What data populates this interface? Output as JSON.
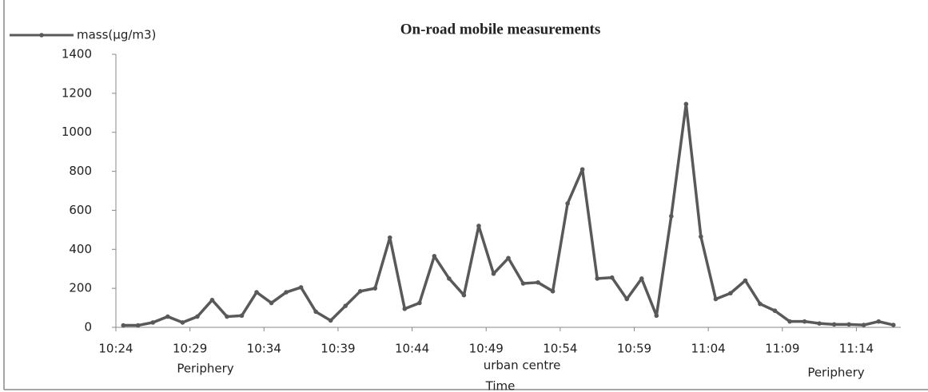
{
  "chart_data": {
    "type": "line",
    "title": "On-road mobile measurements",
    "x_label": "Time",
    "annotations": [
      "Periphery",
      "urban centre",
      "Periphery"
    ],
    "categories": [
      "10:24",
      null,
      null,
      null,
      null,
      "10:29",
      null,
      null,
      null,
      null,
      "10:34",
      null,
      null,
      null,
      null,
      "10:39",
      null,
      null,
      null,
      null,
      "10:44",
      null,
      null,
      null,
      null,
      "10:49",
      null,
      null,
      null,
      null,
      "10:54",
      null,
      null,
      null,
      null,
      "10:59",
      null,
      null,
      null,
      null,
      "11:04",
      null,
      null,
      null,
      null,
      "11:09",
      null,
      null,
      null,
      null,
      "11:14",
      null,
      null
    ],
    "series": [
      {
        "name": "mass(µg/m3)",
        "color": "#595959",
        "values": [
          10,
          10,
          25,
          55,
          25,
          55,
          140,
          55,
          60,
          180,
          125,
          180,
          205,
          80,
          35,
          110,
          185,
          200,
          460,
          95,
          125,
          365,
          250,
          165,
          520,
          275,
          355,
          225,
          230,
          185,
          635,
          810,
          250,
          255,
          145,
          250,
          60,
          570,
          1145,
          465,
          145,
          175,
          240,
          120,
          85,
          30,
          30,
          20,
          15,
          15,
          12,
          30,
          12
        ]
      }
    ],
    "ylim": [
      0,
      1400
    ],
    "yticks": [
      0,
      200,
      400,
      600,
      800,
      1000,
      1200,
      1400
    ],
    "legend": "top-left",
    "grid": false
  }
}
